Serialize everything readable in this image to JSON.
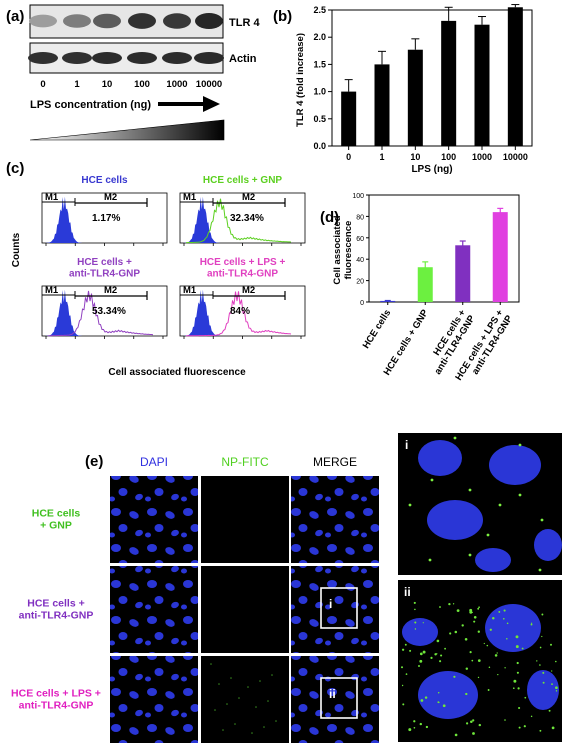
{
  "panel_labels": {
    "a": "(a)",
    "b": "(b)",
    "c": "(c)",
    "d": "(d)",
    "e": "(e)"
  },
  "panel_a": {
    "blot_labels": [
      "TLR 4",
      "Actin"
    ],
    "lanes": [
      "0",
      "1",
      "10",
      "100",
      "1000",
      "10000"
    ],
    "arrow_label": "LPS concentration (ng)",
    "tlr4_band_intensity": [
      0.45,
      0.6,
      0.75,
      0.95,
      0.92,
      1.0
    ],
    "actin_band_intensity": [
      0.9,
      0.9,
      0.92,
      0.92,
      0.92,
      0.93
    ]
  },
  "panel_c": {
    "ylabel": "Counts",
    "xlabel": "Cell associated fluorescence",
    "gate_labels": [
      "M1",
      "M2"
    ],
    "histograms": [
      {
        "title": "HCE cells",
        "pct": "1.17%",
        "color": "#3838d0",
        "overlay": false
      },
      {
        "title": "HCE cells + GNP",
        "pct": "32.34%",
        "color": "#5cd020",
        "overlay": true,
        "shift": 0.14
      },
      {
        "title": "HCE cells +\nanti-TLR4-GNP",
        "pct": "53.34%",
        "color": "#9040c0",
        "overlay": true,
        "shift": 0.2
      },
      {
        "title": "HCE cells + LPS +\nanti-TLR4-GNP",
        "pct": "84%",
        "color": "#e040c0",
        "overlay": true,
        "shift": 0.28
      }
    ]
  },
  "panel_e": {
    "column_headers": [
      "DAPI",
      "NP-FITC",
      "MERGE"
    ],
    "header_colors": [
      "#3030e0",
      "#50d020",
      "#000000"
    ],
    "row_labels": [
      "HCE cells\n+ GNP",
      "HCE cells +\nanti-TLR4-GNP",
      "HCE cells + LPS +\nanti-TLR4-GNP"
    ],
    "row_colors": [
      "#40c020",
      "#8030c0",
      "#e020c0"
    ],
    "inset_labels": [
      "i",
      "ii"
    ]
  },
  "chart_data": [
    {
      "type": "bar",
      "panel": "b",
      "categories": [
        "0",
        "1",
        "10",
        "100",
        "1000",
        "10000"
      ],
      "values": [
        1.0,
        1.5,
        1.77,
        2.3,
        2.23,
        2.55
      ],
      "errors": [
        0.22,
        0.24,
        0.2,
        0.25,
        0.15,
        0.05
      ],
      "xlabel": "LPS (ng)",
      "ylabel": "TLR 4 (fold increase)",
      "ylim": [
        0,
        2.5
      ],
      "yticks": [
        "0.0",
        "0.5",
        "1.0",
        "1.5",
        "2.0",
        "2.5"
      ],
      "bar_color": "#000000"
    },
    {
      "type": "bar",
      "panel": "d",
      "categories": [
        "HCE cells",
        "HCE cells + GNP",
        "HCE cells +\nanti-TLR4-GNP",
        "HCE cells + LPS +\nanti-TLR4-GNP"
      ],
      "values": [
        1.0,
        32.5,
        53.0,
        84.0
      ],
      "errors": [
        0.4,
        5.0,
        4.0,
        3.5
      ],
      "colors": [
        "#3838d0",
        "#6cf040",
        "#8030c0",
        "#e040e0"
      ],
      "ylabel": "Cell associated\nfluorescence",
      "ylim": [
        0,
        100
      ],
      "yticks": [
        "0",
        "20",
        "40",
        "60",
        "80",
        "100"
      ]
    }
  ]
}
